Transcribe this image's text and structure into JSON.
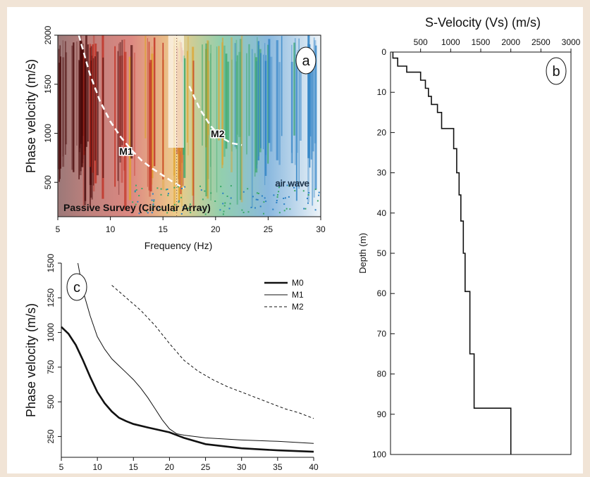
{
  "colors": {
    "page_bg": "#f1e4d6",
    "panel_bg": "#ffffff",
    "ink": "#111111",
    "dispersion_dark": "#4a0a0a",
    "dispersion_red": "#c0281b",
    "dispersion_green": "#3aa86a",
    "dispersion_blue": "#2a7fc4"
  },
  "chart_data": [
    {
      "id": "a",
      "type": "heatmap",
      "panel_label": "a",
      "xlabel": "Frequency (Hz)",
      "ylabel": "Phase velocity (m/s)",
      "xlim": [
        5,
        30
      ],
      "ylim": [
        150,
        2000
      ],
      "xticks": [
        5,
        10,
        15,
        20,
        25,
        30
      ],
      "yticks": [
        500,
        1000,
        1500,
        2000
      ],
      "caption": "Passive Survey (Circular Array)",
      "annotations": [
        {
          "text": "M1",
          "x": 11.5,
          "y": 780
        },
        {
          "text": "M2",
          "x": 20.2,
          "y": 960
        },
        {
          "text": "air wave",
          "x": 27.3,
          "y": 460
        }
      ],
      "series": [
        {
          "name": "M1",
          "style": "dashed-white",
          "x": [
            7,
            8,
            9,
            10,
            11,
            12,
            13,
            14,
            15,
            16,
            17
          ],
          "y": [
            2000,
            1620,
            1330,
            1120,
            960,
            830,
            720,
            640,
            570,
            500,
            440
          ]
        },
        {
          "name": "M2",
          "style": "dashed-white",
          "x": [
            17.5,
            18.5,
            19.5,
            20.5,
            21.5,
            22.5
          ],
          "y": [
            1480,
            1250,
            1080,
            960,
            900,
            880
          ]
        }
      ],
      "dotted_vertical_x": 16.3
    },
    {
      "id": "b",
      "type": "line",
      "panel_label": "b",
      "title": "S-Velocity (Vs) (m/s)",
      "ylabel": "Depth (m)",
      "xlim": [
        0,
        3000
      ],
      "ylim": [
        100,
        0
      ],
      "xticks": [
        500,
        1000,
        1500,
        2000,
        2500,
        3000
      ],
      "yticks": [
        0,
        10,
        20,
        30,
        40,
        50,
        60,
        70,
        80,
        90,
        100
      ],
      "series": [
        {
          "name": "Vs",
          "x": [
            40,
            40,
            120,
            120,
            270,
            270,
            500,
            500,
            580,
            580,
            630,
            630,
            680,
            680,
            780,
            780,
            850,
            850,
            1050,
            1050,
            1100,
            1100,
            1140,
            1140,
            1170,
            1170,
            1210,
            1210,
            1240,
            1240,
            1320,
            1320,
            1390,
            1390,
            1480,
            1480,
            2000,
            2000
          ],
          "y": [
            0,
            1.5,
            1.5,
            3.5,
            3.5,
            5,
            5,
            7,
            7,
            9,
            9,
            11,
            11,
            13,
            13,
            15,
            15,
            19,
            19,
            24,
            24,
            30,
            30,
            35.5,
            35.5,
            42,
            42,
            50,
            50,
            59.5,
            59.5,
            75,
            75,
            88.5,
            88.5,
            88.5,
            88.5,
            100
          ]
        }
      ]
    },
    {
      "id": "c",
      "type": "line",
      "panel_label": "c",
      "ylabel": "Phase velocity (m/s)",
      "xlim": [
        5,
        40
      ],
      "ylim": [
        100,
        1500
      ],
      "xticks": [
        5,
        10,
        15,
        20,
        25,
        30,
        35,
        40
      ],
      "yticks": [
        250,
        500,
        750,
        1000,
        1250,
        1500
      ],
      "legend_position": "top-right",
      "series": [
        {
          "name": "M0",
          "style": "solid-thick",
          "x": [
            5,
            6,
            7,
            8,
            9,
            10,
            11,
            12,
            13,
            14,
            15,
            17,
            20,
            22,
            25,
            30,
            35,
            40
          ],
          "y": [
            1040,
            990,
            910,
            800,
            680,
            570,
            490,
            430,
            385,
            360,
            340,
            315,
            280,
            240,
            195,
            165,
            150,
            140
          ]
        },
        {
          "name": "M1",
          "style": "solid-thin",
          "x": [
            7.3,
            8,
            9,
            10,
            11,
            12,
            13,
            14,
            15,
            16,
            17,
            18,
            19,
            20,
            21,
            22,
            25,
            30,
            35,
            40
          ],
          "y": [
            1500,
            1300,
            1120,
            970,
            880,
            810,
            760,
            710,
            660,
            600,
            530,
            450,
            370,
            305,
            270,
            260,
            240,
            225,
            215,
            200
          ]
        },
        {
          "name": "M2",
          "style": "dashed",
          "x": [
            12,
            14,
            16,
            18,
            20,
            22,
            24,
            26,
            28,
            30,
            32,
            34,
            36,
            38,
            40
          ],
          "y": [
            1340,
            1250,
            1160,
            1050,
            920,
            800,
            720,
            660,
            610,
            570,
            530,
            490,
            450,
            420,
            380
          ]
        }
      ]
    }
  ]
}
